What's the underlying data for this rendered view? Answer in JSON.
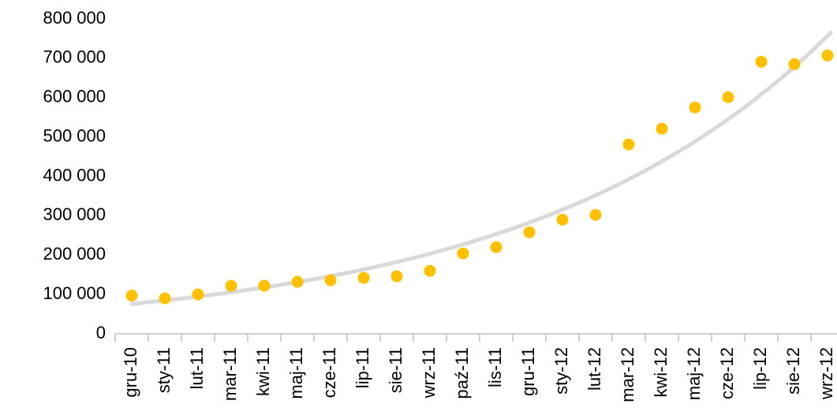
{
  "chart_data": {
    "type": "scatter",
    "categories": [
      "gru-10",
      "sty-11",
      "lut-11",
      "mar-11",
      "kwi-11",
      "maj-11",
      "cze-11",
      "lip-11",
      "sie-11",
      "wrz-11",
      "paź-11",
      "lis-11",
      "gru-11",
      "sty-12",
      "lut-12",
      "mar-12",
      "kwi-12",
      "maj-12",
      "cze-12",
      "lip-12",
      "sie-12",
      "wrz-12"
    ],
    "values": [
      97000,
      90000,
      100000,
      122000,
      122000,
      132000,
      136000,
      142000,
      146000,
      160000,
      204000,
      220000,
      258000,
      290000,
      302000,
      481000,
      521000,
      575000,
      601000,
      691000,
      685000,
      707000
    ],
    "color": "#ffc000",
    "trendline": "exponential",
    "trendline_color": "#d9d9d9",
    "ylim": [
      0,
      800000
    ],
    "yticks": [
      0,
      {
        "value": 100000,
        "label": "100 000"
      },
      {
        "value": 200000,
        "label": "200 000"
      },
      {
        "value": 300000,
        "label": "300 000"
      },
      {
        "value": 400000,
        "label": "400 000"
      },
      {
        "value": 500000,
        "label": "500 000"
      },
      {
        "value": 600000,
        "label": "600 000"
      },
      {
        "value": 700000,
        "label": "700 000"
      },
      {
        "value": 800000,
        "label": "800 000"
      }
    ]
  }
}
